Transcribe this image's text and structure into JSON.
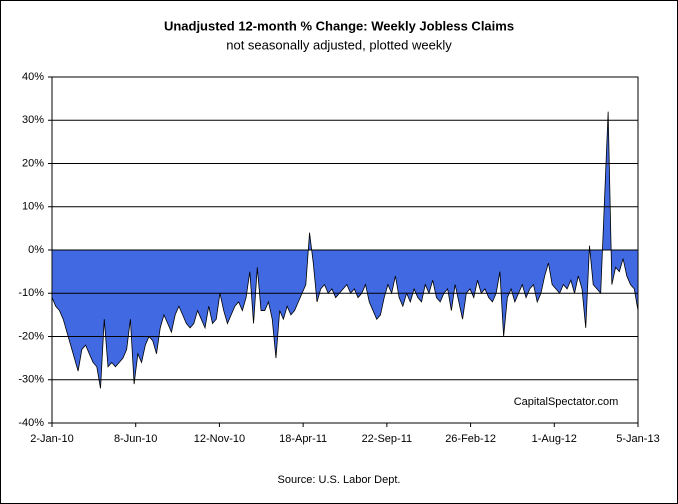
{
  "chart_data": {
    "type": "area",
    "title": "Unadjusted 12-month %  Change: Weekly Jobless Claims",
    "subtitle": "not seasonally adjusted, plotted weekly",
    "source": "Source: U.S. Labor Dept.",
    "annotation": "CapitalSpectator.com",
    "color": "#4169e1",
    "grid": true,
    "xlim": [
      "2010-01-02",
      "2013-01-05"
    ],
    "xticks": [
      {
        "value": "2010-01-02",
        "label": "2-Jan-10"
      },
      {
        "value": "2010-06-08",
        "label": "8-Jun-10"
      },
      {
        "value": "2010-11-12",
        "label": "12-Nov-10"
      },
      {
        "value": "2011-04-18",
        "label": "18-Apr-11"
      },
      {
        "value": "2011-09-22",
        "label": "22-Sep-11"
      },
      {
        "value": "2012-02-26",
        "label": "26-Feb-12"
      },
      {
        "value": "2012-08-01",
        "label": "1-Aug-12"
      },
      {
        "value": "2013-01-05",
        "label": "5-Jan-13"
      }
    ],
    "ylim": [
      -40,
      40
    ],
    "yticks": [
      {
        "value": -40,
        "label": "-40%"
      },
      {
        "value": -30,
        "label": "-30%"
      },
      {
        "value": -20,
        "label": "-20%"
      },
      {
        "value": -10,
        "label": "-10%"
      },
      {
        "value": 0,
        "label": "0%"
      },
      {
        "value": 10,
        "label": "10%"
      },
      {
        "value": 20,
        "label": "20%"
      },
      {
        "value": 30,
        "label": "30%"
      },
      {
        "value": 40,
        "label": "40%"
      }
    ],
    "x": [
      "2010-01-02",
      "2010-01-09",
      "2010-01-16",
      "2010-01-23",
      "2010-01-30",
      "2010-02-06",
      "2010-02-13",
      "2010-02-20",
      "2010-02-27",
      "2010-03-06",
      "2010-03-13",
      "2010-03-20",
      "2010-03-27",
      "2010-04-03",
      "2010-04-10",
      "2010-04-17",
      "2010-04-24",
      "2010-05-01",
      "2010-05-08",
      "2010-05-15",
      "2010-05-22",
      "2010-05-29",
      "2010-06-05",
      "2010-06-12",
      "2010-06-19",
      "2010-06-26",
      "2010-07-03",
      "2010-07-10",
      "2010-07-17",
      "2010-07-24",
      "2010-07-31",
      "2010-08-07",
      "2010-08-14",
      "2010-08-21",
      "2010-08-28",
      "2010-09-04",
      "2010-09-11",
      "2010-09-18",
      "2010-09-25",
      "2010-10-02",
      "2010-10-09",
      "2010-10-16",
      "2010-10-23",
      "2010-10-30",
      "2010-11-06",
      "2010-11-13",
      "2010-11-20",
      "2010-11-27",
      "2010-12-04",
      "2010-12-11",
      "2010-12-18",
      "2010-12-25",
      "2011-01-01",
      "2011-01-08",
      "2011-01-15",
      "2011-01-22",
      "2011-01-29",
      "2011-02-05",
      "2011-02-12",
      "2011-02-19",
      "2011-02-26",
      "2011-03-05",
      "2011-03-12",
      "2011-03-19",
      "2011-03-26",
      "2011-04-02",
      "2011-04-09",
      "2011-04-16",
      "2011-04-23",
      "2011-04-30",
      "2011-05-07",
      "2011-05-14",
      "2011-05-21",
      "2011-05-28",
      "2011-06-04",
      "2011-06-11",
      "2011-06-18",
      "2011-06-25",
      "2011-07-02",
      "2011-07-09",
      "2011-07-16",
      "2011-07-23",
      "2011-07-30",
      "2011-08-06",
      "2011-08-13",
      "2011-08-20",
      "2011-08-27",
      "2011-09-03",
      "2011-09-10",
      "2011-09-17",
      "2011-09-24",
      "2011-10-01",
      "2011-10-08",
      "2011-10-15",
      "2011-10-22",
      "2011-10-29",
      "2011-11-05",
      "2011-11-12",
      "2011-11-19",
      "2011-11-26",
      "2011-12-03",
      "2011-12-10",
      "2011-12-17",
      "2011-12-24",
      "2011-12-31",
      "2012-01-07",
      "2012-01-14",
      "2012-01-21",
      "2012-01-28",
      "2012-02-04",
      "2012-02-11",
      "2012-02-18",
      "2012-02-25",
      "2012-03-03",
      "2012-03-10",
      "2012-03-17",
      "2012-03-24",
      "2012-03-31",
      "2012-04-07",
      "2012-04-14",
      "2012-04-21",
      "2012-04-28",
      "2012-05-05",
      "2012-05-12",
      "2012-05-19",
      "2012-05-26",
      "2012-06-02",
      "2012-06-09",
      "2012-06-16",
      "2012-06-23",
      "2012-06-30",
      "2012-07-07",
      "2012-07-14",
      "2012-07-21",
      "2012-07-28",
      "2012-08-04",
      "2012-08-11",
      "2012-08-18",
      "2012-08-25",
      "2012-09-01",
      "2012-09-08",
      "2012-09-15",
      "2012-09-22",
      "2012-09-29",
      "2012-10-06",
      "2012-10-13",
      "2012-10-20",
      "2012-10-27",
      "2012-11-03",
      "2012-11-10",
      "2012-11-17",
      "2012-11-24",
      "2012-12-01",
      "2012-12-08",
      "2012-12-15",
      "2012-12-22",
      "2012-12-29",
      "2013-01-05"
    ],
    "values": [
      -11,
      -13,
      -14,
      -16,
      -19,
      -22,
      -25,
      -28,
      -23,
      -22,
      -24,
      -26,
      -27,
      -32,
      -16,
      -27,
      -26,
      -27,
      -26,
      -25,
      -23,
      -16,
      -31,
      -24,
      -26,
      -22,
      -20,
      -21,
      -24,
      -18,
      -15,
      -17,
      -19,
      -15,
      -13,
      -15,
      -17,
      -18,
      -17,
      -14,
      -16,
      -18,
      -13,
      -17,
      -16,
      -10,
      -14,
      -17,
      -15,
      -13,
      -12,
      -14,
      -11,
      -5,
      -17,
      -4,
      -14,
      -14,
      -12,
      -16,
      -25,
      -14,
      -16,
      -13,
      -15,
      -14,
      -12,
      -10,
      -8,
      4,
      -3,
      -12,
      -9,
      -8,
      -10,
      -9,
      -11,
      -10,
      -9,
      -8,
      -10,
      -9,
      -11,
      -10,
      -8,
      -12,
      -14,
      -16,
      -15,
      -11,
      -8,
      -10,
      -6,
      -11,
      -13,
      -10,
      -12,
      -9,
      -11,
      -12,
      -8,
      -10,
      -7,
      -11,
      -12,
      -10,
      -9,
      -14,
      -8,
      -12,
      -16,
      -10,
      -9,
      -11,
      -7,
      -10,
      -9,
      -11,
      -12,
      -10,
      -5,
      -20,
      -11,
      -9,
      -12,
      -10,
      -8,
      -11,
      -9,
      -8,
      -12,
      -10,
      -6,
      -3,
      -8,
      -9,
      -10,
      -8,
      -9,
      -7,
      -10,
      -6,
      -9,
      -18,
      1,
      -8,
      -9,
      -10,
      11,
      32,
      -8,
      -4,
      -5,
      -2,
      -6,
      -8,
      -9,
      -14
    ]
  }
}
